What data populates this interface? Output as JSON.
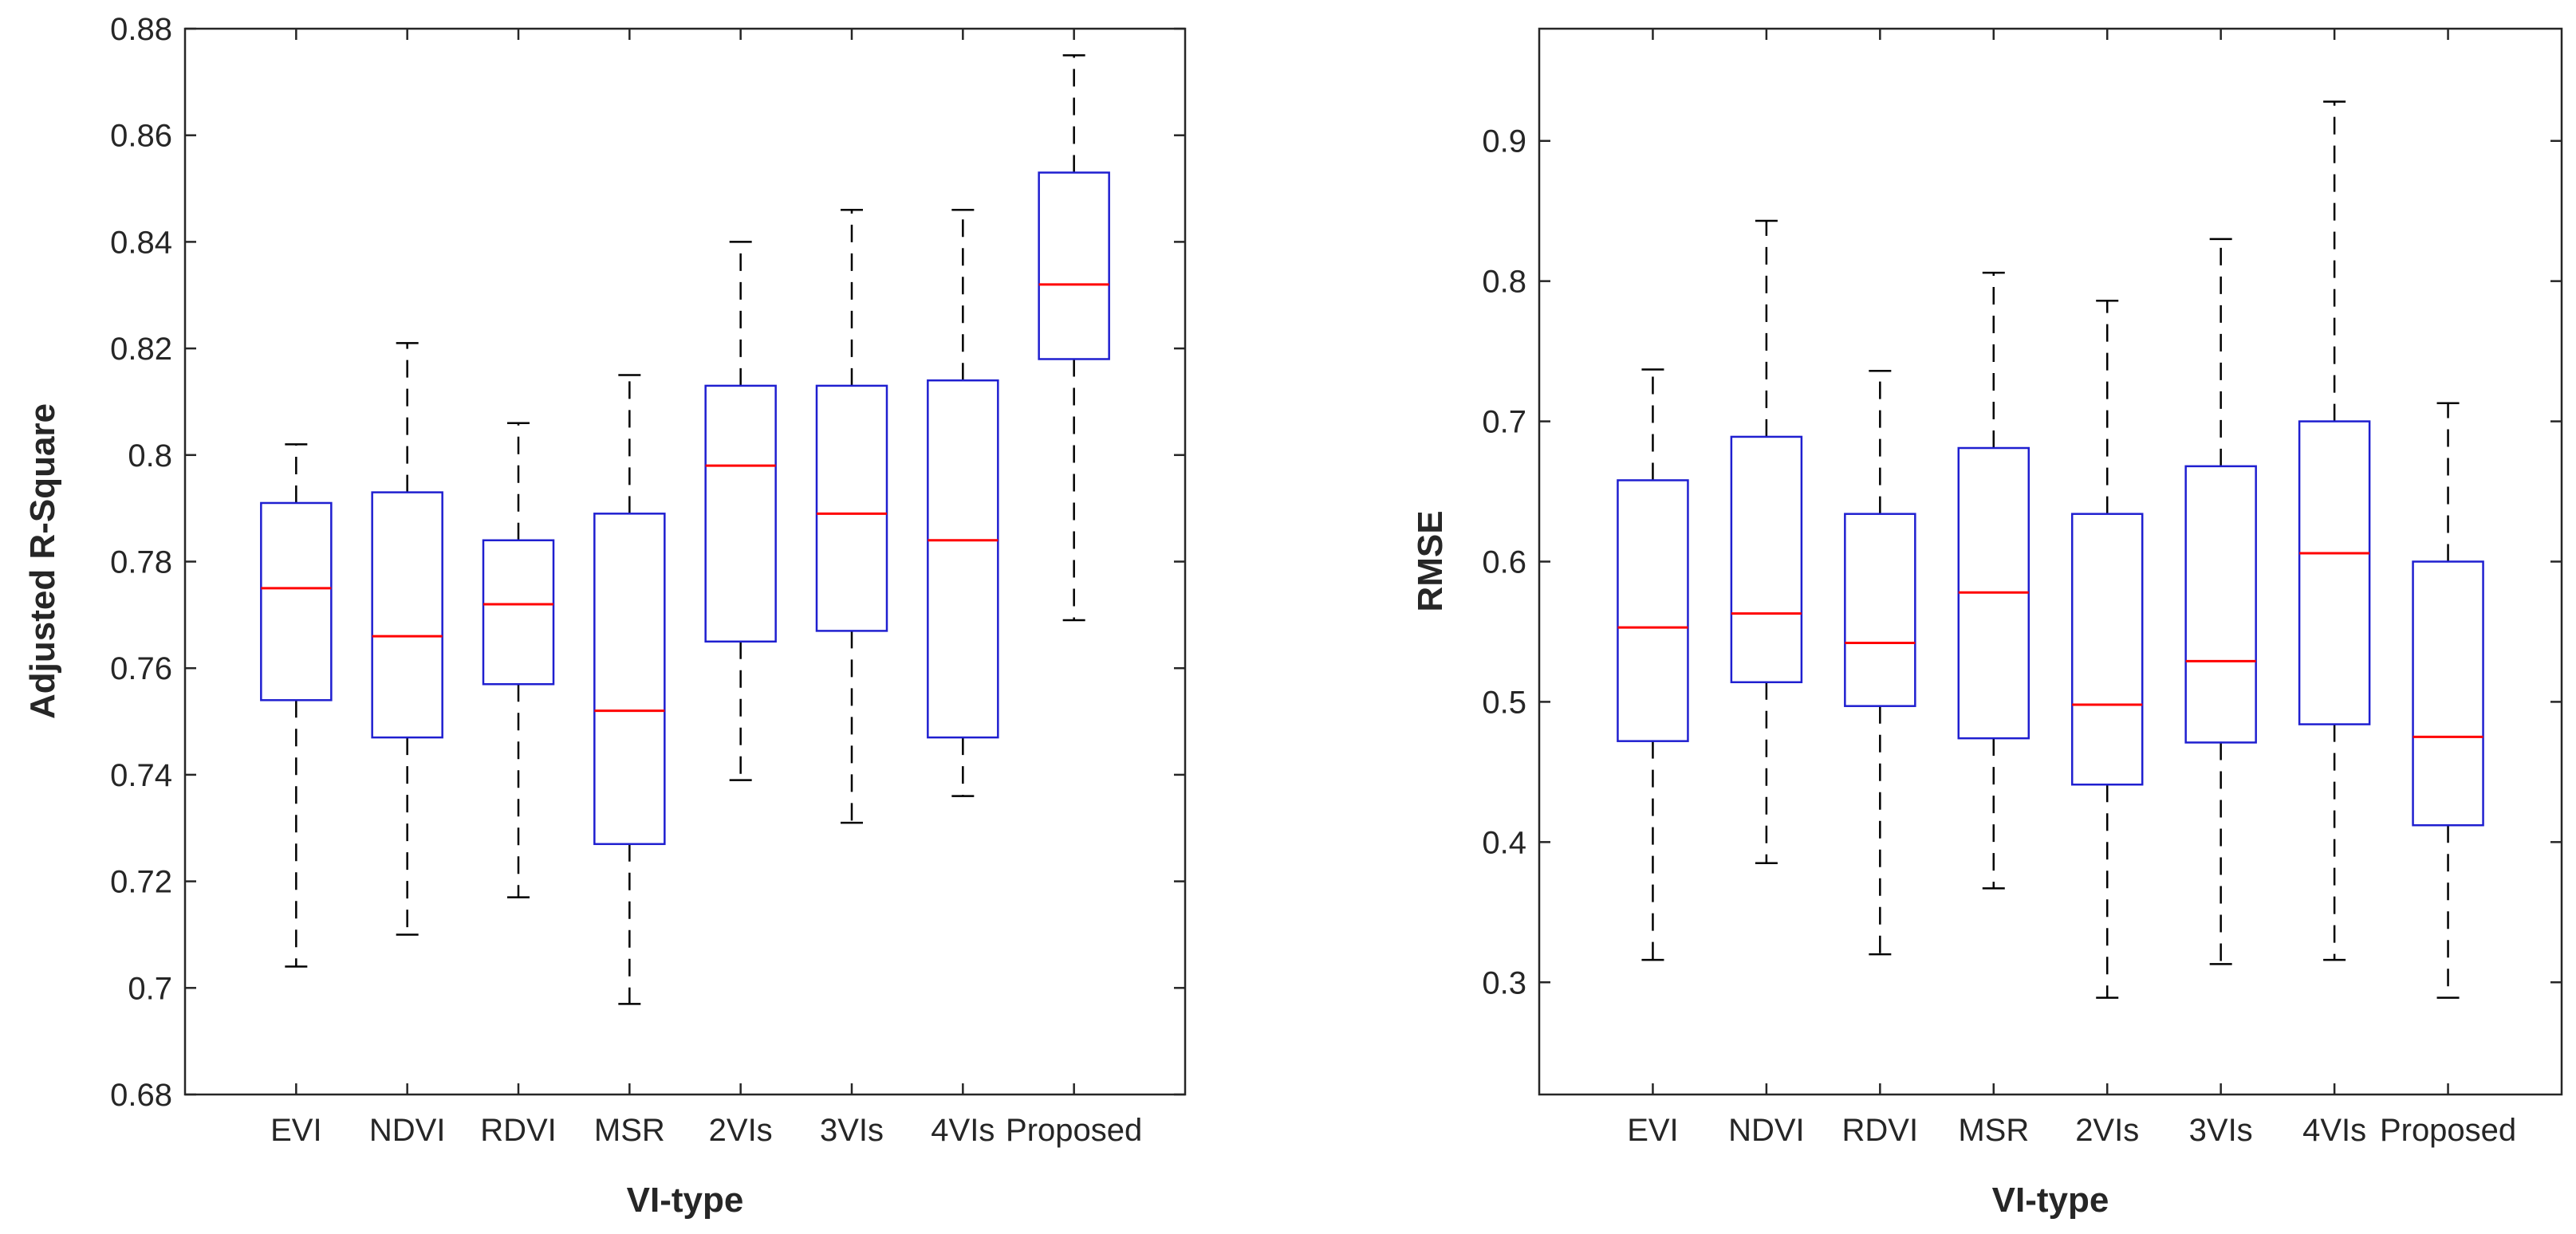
{
  "chart_data": [
    {
      "type": "boxplot",
      "xlabel": "VI-type",
      "ylabel": "Adjusted R-Square",
      "ylim": [
        0.68,
        0.88
      ],
      "yticks": [
        "0.68",
        "0.7",
        "0.72",
        "0.74",
        "0.76",
        "0.78",
        "0.8",
        "0.82",
        "0.84",
        "0.86",
        "0.88"
      ],
      "categories": [
        "EVI",
        "NDVI",
        "RDVI",
        "MSR",
        "2VIs",
        "3VIs",
        "4VIs",
        "Proposed"
      ],
      "boxes": [
        {
          "min": 0.704,
          "q1": 0.754,
          "median": 0.775,
          "q3": 0.791,
          "max": 0.802
        },
        {
          "min": 0.71,
          "q1": 0.747,
          "median": 0.766,
          "q3": 0.793,
          "max": 0.821
        },
        {
          "min": 0.717,
          "q1": 0.757,
          "median": 0.772,
          "q3": 0.784,
          "max": 0.806
        },
        {
          "min": 0.697,
          "q1": 0.727,
          "median": 0.752,
          "q3": 0.789,
          "max": 0.815
        },
        {
          "min": 0.739,
          "q1": 0.765,
          "median": 0.798,
          "q3": 0.813,
          "max": 0.84
        },
        {
          "min": 0.731,
          "q1": 0.767,
          "median": 0.789,
          "q3": 0.813,
          "max": 0.846
        },
        {
          "min": 0.736,
          "q1": 0.747,
          "median": 0.784,
          "q3": 0.814,
          "max": 0.846
        },
        {
          "min": 0.769,
          "q1": 0.818,
          "median": 0.832,
          "q3": 0.853,
          "max": 0.875
        }
      ]
    },
    {
      "type": "boxplot",
      "xlabel": "VI-type",
      "ylabel": "RMSE",
      "ylim": [
        0.22,
        0.98
      ],
      "yticks": [
        "0.3",
        "0.4",
        "0.5",
        "0.6",
        "0.7",
        "0.8",
        "0.9"
      ],
      "categories": [
        "EVI",
        "NDVI",
        "RDVI",
        "MSR",
        "2VIs",
        "3VIs",
        "4VIs",
        "Proposed"
      ],
      "boxes": [
        {
          "min": 0.316,
          "q1": 0.472,
          "median": 0.553,
          "q3": 0.658,
          "max": 0.737
        },
        {
          "min": 0.385,
          "q1": 0.514,
          "median": 0.563,
          "q3": 0.689,
          "max": 0.843
        },
        {
          "min": 0.32,
          "q1": 0.497,
          "median": 0.542,
          "q3": 0.634,
          "max": 0.736
        },
        {
          "min": 0.367,
          "q1": 0.474,
          "median": 0.578,
          "q3": 0.681,
          "max": 0.806
        },
        {
          "min": 0.289,
          "q1": 0.441,
          "median": 0.498,
          "q3": 0.634,
          "max": 0.786
        },
        {
          "min": 0.313,
          "q1": 0.471,
          "median": 0.529,
          "q3": 0.668,
          "max": 0.83
        },
        {
          "min": 0.316,
          "q1": 0.484,
          "median": 0.606,
          "q3": 0.7,
          "max": 0.928
        },
        {
          "min": 0.289,
          "q1": 0.412,
          "median": 0.475,
          "q3": 0.6,
          "max": 0.713
        }
      ]
    }
  ],
  "colors": {
    "box": "#1f1fd0",
    "median": "#ff0000",
    "whisker": "#000000",
    "axis": "#262626"
  }
}
